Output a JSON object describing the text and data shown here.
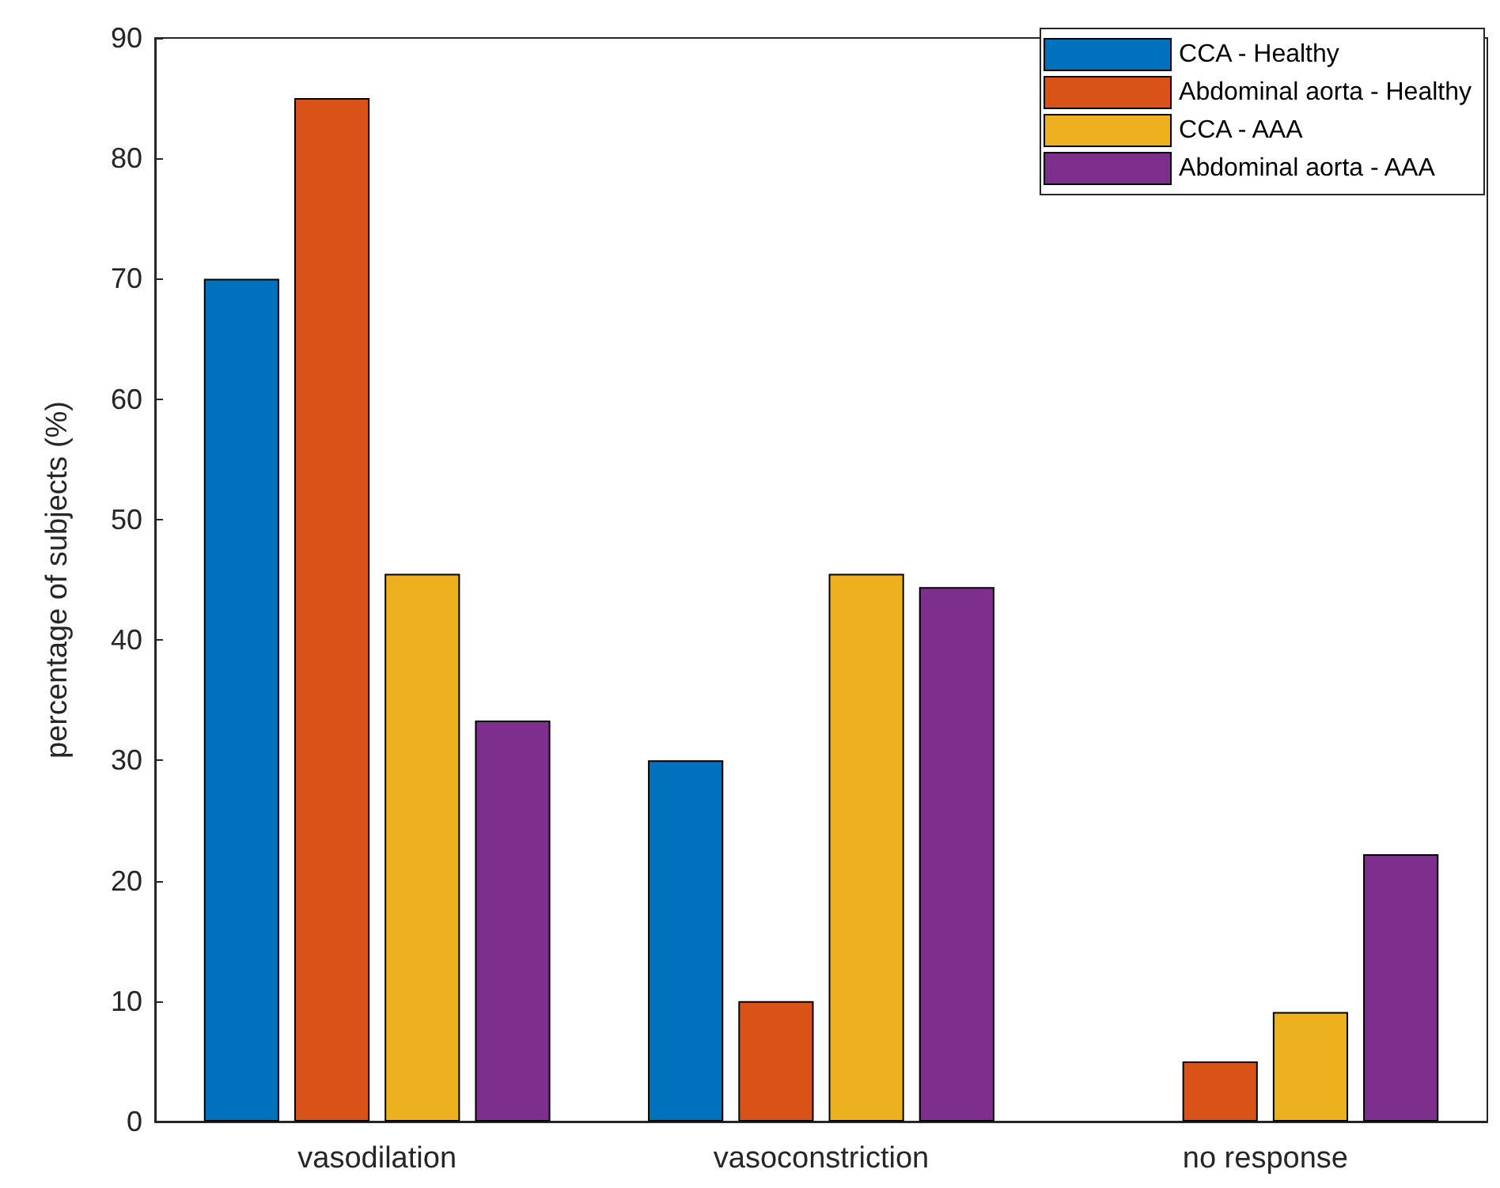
{
  "chart_data": {
    "type": "bar",
    "ylabel": "percentage of subjects (%)",
    "categories": [
      "vasodilation",
      "vasoconstriction",
      "no response"
    ],
    "series": [
      {
        "name": "CCA - Healthy",
        "color": "#0072bd",
        "values": [
          70,
          30,
          0
        ]
      },
      {
        "name": "Abdominal aorta - Healthy",
        "color": "#d95319",
        "values": [
          85,
          10,
          5
        ]
      },
      {
        "name": "CCA - AAA",
        "color": "#edb120",
        "values": [
          45.5,
          45.5,
          9.1
        ]
      },
      {
        "name": "Abdominal aorta - AAA",
        "color": "#7e2f8e",
        "values": [
          33.3,
          44.4,
          22.2
        ]
      }
    ],
    "ylim": [
      0,
      90
    ],
    "yticks": [
      0,
      10,
      20,
      30,
      40,
      50,
      60,
      70,
      80,
      90
    ],
    "grid": false,
    "legend": "top right"
  }
}
